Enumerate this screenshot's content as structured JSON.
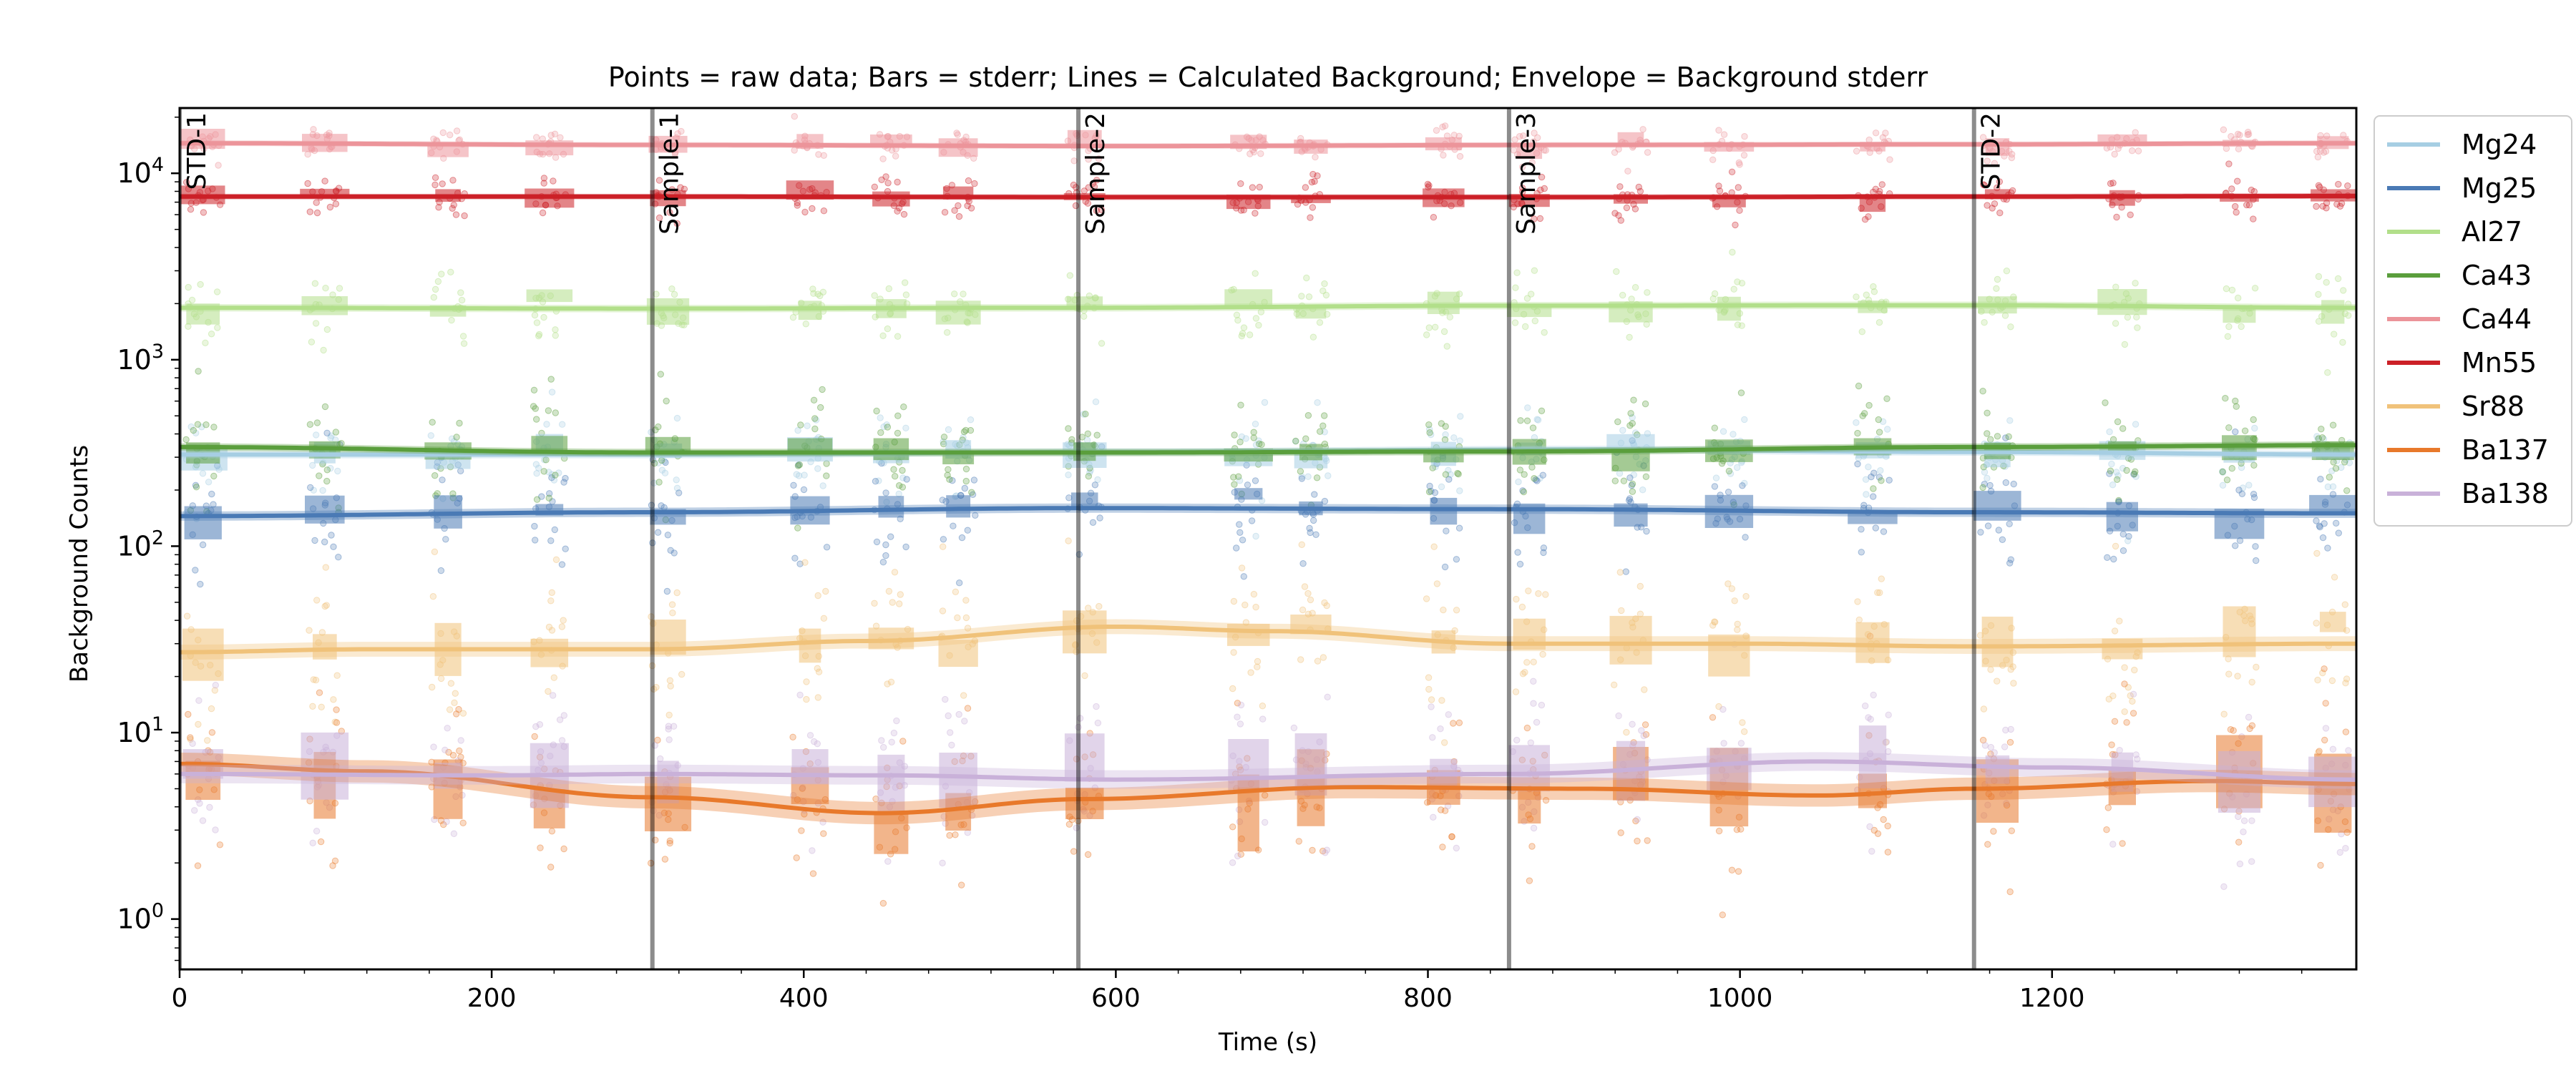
{
  "chart_data": {
    "type": "scatter",
    "title": "Points = raw data; Bars = stderr; Lines = Calculated Background; Envelope = Background stderr",
    "xlabel": "Time (s)",
    "ylabel": "Background Counts",
    "xlim": [
      0,
      1395
    ],
    "ylim_log10": [
      -0.27,
      4.35
    ],
    "yscale": "log",
    "x_ticks": [
      0,
      200,
      400,
      600,
      800,
      1000,
      1200
    ],
    "x_tick_labels": [
      "0",
      "200",
      "400",
      "600",
      "800",
      "1000",
      "1200"
    ],
    "y_ticks": [
      1,
      10,
      100,
      1000,
      10000
    ],
    "y_tick_labels": [
      {
        "base": "10",
        "exp": "0"
      },
      {
        "base": "10",
        "exp": "1"
      },
      {
        "base": "10",
        "exp": "2"
      },
      {
        "base": "10",
        "exp": "3"
      },
      {
        "base": "10",
        "exp": "4"
      }
    ],
    "grid": false,
    "legend_position": "outside right",
    "sample_boundaries": [
      {
        "x": 0,
        "label": "STD-1"
      },
      {
        "x": 303,
        "label": "Sample-1"
      },
      {
        "x": 576,
        "label": "Sample-2"
      },
      {
        "x": 852,
        "label": "Sample-3"
      },
      {
        "x": 1150,
        "label": "STD-2"
      }
    ],
    "measurement_times": [
      15,
      93,
      172,
      237,
      313,
      404,
      456,
      499,
      580,
      685,
      725,
      810,
      865,
      930,
      993,
      1085,
      1165,
      1245,
      1320,
      1380
    ],
    "series": [
      {
        "name": "Mg24",
        "color": "#a6cee3",
        "background": [
          [
            0,
            310
          ],
          [
            300,
            310
          ],
          [
            600,
            320
          ],
          [
            900,
            330
          ],
          [
            1150,
            320
          ],
          [
            1395,
            310
          ]
        ],
        "stderr_rel": 0.04,
        "scatter": 0.25
      },
      {
        "name": "Mg25",
        "color": "#4a7ab5",
        "background": [
          [
            0,
            145
          ],
          [
            300,
            152
          ],
          [
            580,
            160
          ],
          [
            850,
            158
          ],
          [
            1150,
            152
          ],
          [
            1395,
            150
          ]
        ],
        "stderr_rel": 0.05,
        "scatter": 0.35
      },
      {
        "name": "Al27",
        "color": "#b2df8a",
        "background": [
          [
            0,
            1900
          ],
          [
            300,
            1880
          ],
          [
            580,
            1900
          ],
          [
            850,
            1950
          ],
          [
            1150,
            1960
          ],
          [
            1395,
            1900
          ]
        ],
        "stderr_rel": 0.04,
        "scatter": 0.2
      },
      {
        "name": "Ca43",
        "color": "#5a9e3c",
        "background": [
          [
            0,
            340
          ],
          [
            300,
            318
          ],
          [
            600,
            318
          ],
          [
            850,
            322
          ],
          [
            1150,
            340
          ],
          [
            1395,
            348
          ]
        ],
        "stderr_rel": 0.04,
        "scatter": 0.3
      },
      {
        "name": "Ca44",
        "color": "#ec949a",
        "background": [
          [
            0,
            14500
          ],
          [
            300,
            14200
          ],
          [
            600,
            14000
          ],
          [
            900,
            14200
          ],
          [
            1150,
            14300
          ],
          [
            1395,
            14500
          ]
        ],
        "stderr_rel": 0.03,
        "scatter": 0.1
      },
      {
        "name": "Mn55",
        "color": "#cc2027",
        "background": [
          [
            0,
            7500
          ],
          [
            300,
            7500
          ],
          [
            600,
            7450
          ],
          [
            900,
            7450
          ],
          [
            1150,
            7500
          ],
          [
            1395,
            7550
          ]
        ],
        "stderr_rel": 0.03,
        "scatter": 0.12
      },
      {
        "name": "Sr88",
        "color": "#f0c27a",
        "background": [
          [
            0,
            27
          ],
          [
            120,
            28
          ],
          [
            303,
            28
          ],
          [
            440,
            31
          ],
          [
            600,
            37
          ],
          [
            700,
            35
          ],
          [
            850,
            30
          ],
          [
            1000,
            30
          ],
          [
            1150,
            29
          ],
          [
            1395,
            30
          ]
        ],
        "stderr_rel": 0.08,
        "scatter": 0.45
      },
      {
        "name": "Ba137",
        "color": "#e8792b",
        "background": [
          [
            0,
            6.8
          ],
          [
            120,
            6.2
          ],
          [
            303,
            4.5
          ],
          [
            450,
            3.7
          ],
          [
            580,
            4.4
          ],
          [
            750,
            5.1
          ],
          [
            900,
            5.0
          ],
          [
            1050,
            4.6
          ],
          [
            1150,
            5.0
          ],
          [
            1300,
            5.5
          ],
          [
            1395,
            5.3
          ]
        ],
        "stderr_rel": 0.12,
        "scatter": 0.5
      },
      {
        "name": "Ba138",
        "color": "#c9b1d9",
        "background": [
          [
            0,
            6.0
          ],
          [
            200,
            5.9
          ],
          [
            303,
            6.0
          ],
          [
            450,
            5.9
          ],
          [
            600,
            5.6
          ],
          [
            850,
            6.0
          ],
          [
            1050,
            7.0
          ],
          [
            1200,
            6.5
          ],
          [
            1395,
            5.6
          ]
        ],
        "stderr_rel": 0.1,
        "scatter": 0.5
      }
    ]
  }
}
